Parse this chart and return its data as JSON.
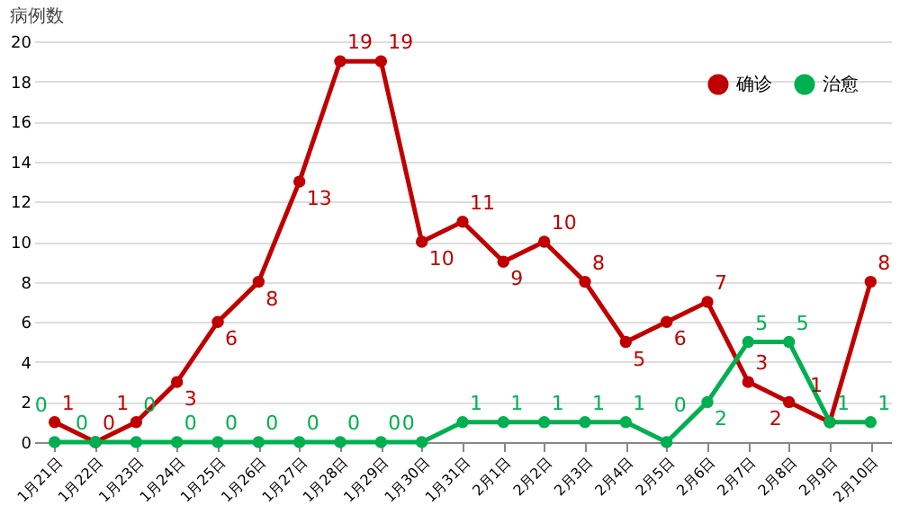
{
  "chart_data": {
    "type": "line",
    "ylabel": "病例数",
    "categories": [
      "1月21日",
      "1月22日",
      "1月23日",
      "1月24日",
      "1月25日",
      "1月26日",
      "1月27日",
      "1月28日",
      "1月29日",
      "1月30日",
      "1月31日",
      "2月1日",
      "2月2日",
      "2月3日",
      "2月4日",
      "2月5日",
      "2月6日",
      "2月7日",
      "2月8日",
      "2月9日",
      "2月10日"
    ],
    "series": [
      {
        "name": "确诊",
        "color": "#c00000",
        "values": [
          1,
          0,
          1,
          3,
          6,
          8,
          13,
          19,
          19,
          10,
          11,
          9,
          10,
          8,
          5,
          6,
          7,
          3,
          2,
          1,
          8
        ]
      },
      {
        "name": "治愈",
        "color": "#00b050",
        "values": [
          0,
          0,
          0,
          0,
          0,
          0,
          0,
          0,
          0,
          0,
          1,
          1,
          1,
          1,
          1,
          0,
          2,
          5,
          5,
          1,
          1
        ]
      }
    ],
    "ylim": [
      0,
      20
    ],
    "yticks": [
      0,
      2,
      4,
      6,
      8,
      10,
      12,
      14,
      16,
      18,
      20
    ],
    "grid": "y",
    "legend": "top right",
    "marker": "circle",
    "line_style": "solid",
    "data_labels": true
  }
}
